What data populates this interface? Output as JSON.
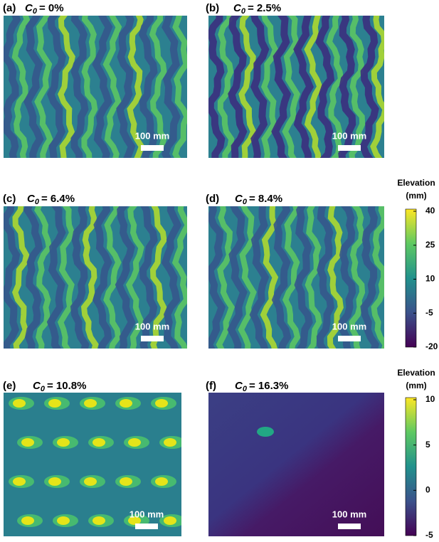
{
  "panels": [
    {
      "letter": "(a)",
      "variable": "C",
      "subscript": "0",
      "value": "= 0%",
      "scale_bar": "100 mm"
    },
    {
      "letter": "(b)",
      "variable": "C",
      "subscript": "0",
      "value": "= 2.5%",
      "scale_bar": "100 mm"
    },
    {
      "letter": "(c)",
      "variable": "C",
      "subscript": "0",
      "value": "= 6.4%",
      "scale_bar": "100 mm"
    },
    {
      "letter": "(d)",
      "variable": "C",
      "subscript": "0",
      "value": "= 8.4%",
      "scale_bar": "100 mm"
    },
    {
      "letter": "(e)",
      "variable": "C",
      "subscript": "0",
      "value": "= 10.8%",
      "scale_bar": "100 mm"
    },
    {
      "letter": "(f)",
      "variable": "C",
      "subscript": "0",
      "value": "= 16.3%",
      "scale_bar": "100 mm"
    }
  ],
  "colorbars": [
    {
      "title": [
        "Elevation",
        "(mm)"
      ],
      "ticks": [
        40,
        25,
        10,
        -5,
        -20
      ]
    },
    {
      "title": [
        "Elevation",
        "(mm)"
      ],
      "ticks": [
        10,
        5,
        0,
        -5
      ]
    }
  ]
}
